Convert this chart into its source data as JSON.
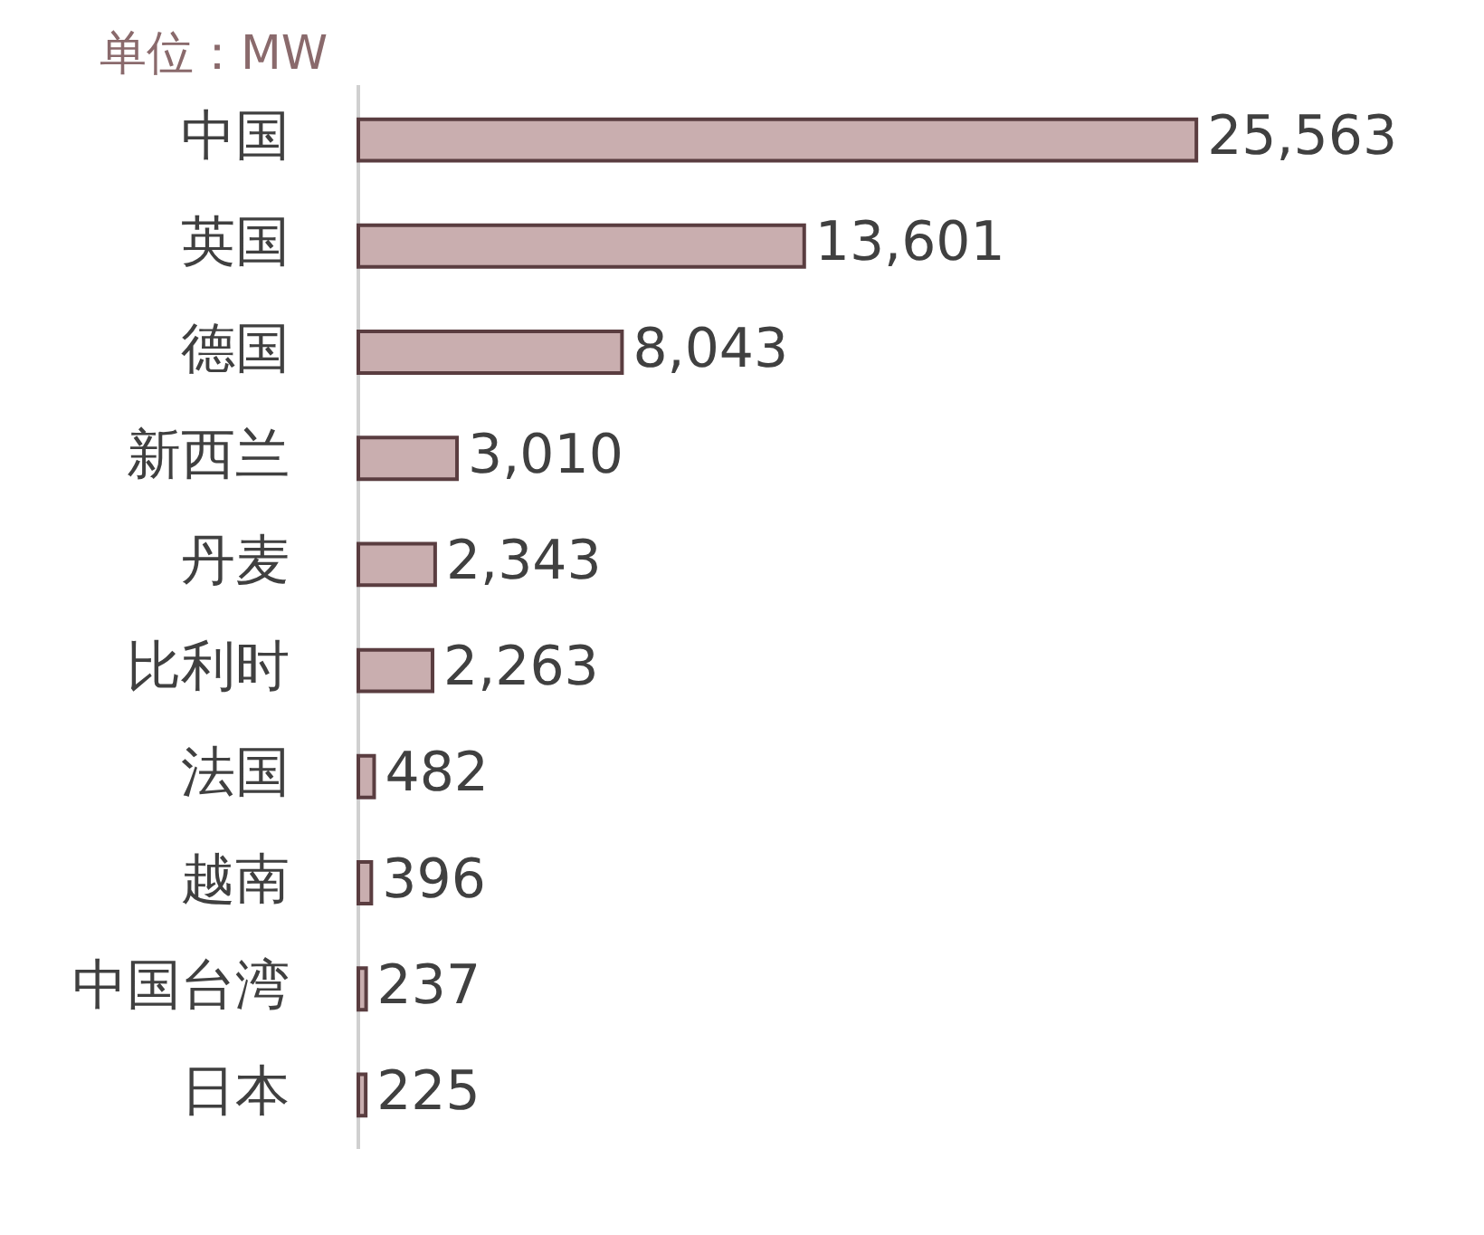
{
  "chart_data": {
    "type": "bar",
    "orientation": "horizontal",
    "annotations": [
      "单位：MW"
    ],
    "categories": [
      "中国",
      "英国",
      "德国",
      "新西兰",
      "丹麦",
      "比利时",
      "法国",
      "越南",
      "中国台湾",
      "日本"
    ],
    "values": [
      25563,
      13601,
      8043,
      3010,
      2343,
      2263,
      482,
      396,
      237,
      225
    ],
    "value_labels": [
      "25,563",
      "13,601",
      "8,043",
      "3,010",
      "2,343",
      "2,263",
      "482",
      "396",
      "237",
      "225"
    ],
    "color": "#c9aeaf",
    "grid": false,
    "legend": false
  }
}
